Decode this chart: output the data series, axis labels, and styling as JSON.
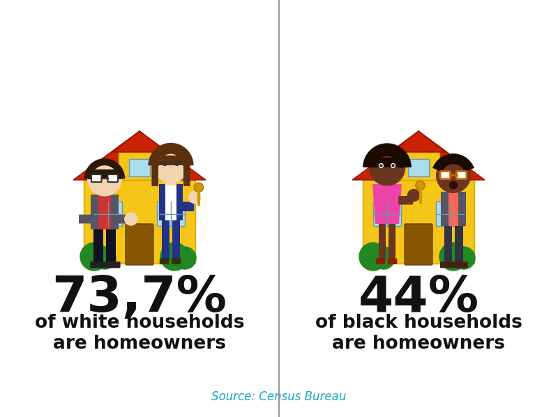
{
  "background_color": "#ffffff",
  "divider_color": "#999999",
  "left_percentage": "73,7%",
  "left_description_line1": "of white households",
  "left_description_line2": "are homeowners",
  "right_percentage": "44%",
  "right_description_line1": "of black households",
  "right_description_line2": "are homeowners",
  "source_text": "Source: Census Bureau",
  "source_color": "#1aa7c4",
  "percentage_fontsize": 52,
  "description_fontsize": 19,
  "source_fontsize": 12,
  "text_color": "#111111",
  "figsize": [
    8.0,
    5.98
  ],
  "dpi": 100,
  "house_wall_color": "#f5c518",
  "house_roof_color": "#cc2200",
  "house_window_color": "#aaddee",
  "house_door_color": "#885500",
  "bush_color": "#228822",
  "person1_skin": "#f5d5a0",
  "person1_hair": "#3a2010",
  "person2_skin": "#6b3a1f",
  "shadow_color": "#dddddd"
}
